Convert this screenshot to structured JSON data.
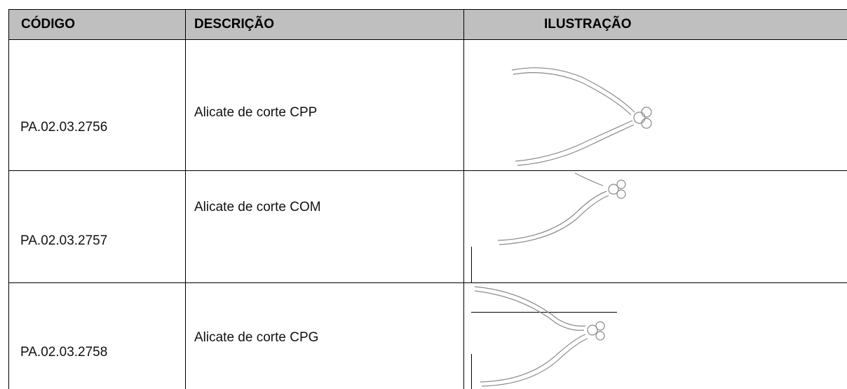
{
  "table": {
    "header": [
      "CÓDIGO",
      "DESCRIÇÃO",
      "ILUSTRAÇÃO"
    ],
    "rows": [
      [
        "PA.02.03.2756",
        "Alicate de corte CPP"
      ],
      [
        "PA.02.03.2757",
        "Alicate de corte COM"
      ],
      [
        "PA.02.03.2758",
        "Alicate de corte CPG"
      ]
    ]
  }
}
